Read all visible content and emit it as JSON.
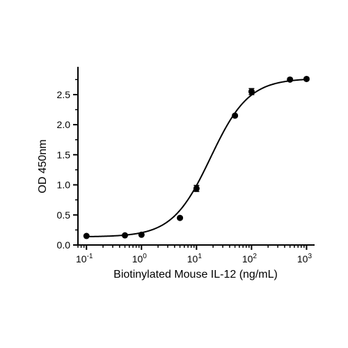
{
  "chart_data": {
    "type": "scatter",
    "xlabel": "Biotinylated Mouse IL-12 (ng/mL)",
    "ylabel": "OD 450nm",
    "x_scale": "log10",
    "xlim": [
      0.07,
      1400
    ],
    "ylim": [
      0,
      2.8
    ],
    "x_ticks": [
      {
        "base": "10",
        "exp": "-1",
        "value": 0.1
      },
      {
        "base": "10",
        "exp": "0",
        "value": 1
      },
      {
        "base": "10",
        "exp": "1",
        "value": 10
      },
      {
        "base": "10",
        "exp": "2",
        "value": 100
      },
      {
        "base": "10",
        "exp": "3",
        "value": 1000
      }
    ],
    "y_ticks": [
      {
        "label": "0.0",
        "value": 0
      },
      {
        "label": "0.5",
        "value": 0.5
      },
      {
        "label": "1.0",
        "value": 1.0
      },
      {
        "label": "1.5",
        "value": 1.5
      },
      {
        "label": "2.0",
        "value": 2.0
      },
      {
        "label": "2.5",
        "value": 2.5
      }
    ],
    "grid": false,
    "series": [
      {
        "x": [
          0.1,
          0.5,
          1,
          5,
          10,
          50,
          100,
          500,
          1000
        ],
        "y": [
          0.15,
          0.16,
          0.17,
          0.45,
          0.94,
          2.15,
          2.55,
          2.75,
          2.76
        ],
        "error": [
          0.01,
          0.01,
          0.01,
          0.02,
          0.05,
          0.02,
          0.05,
          0.02,
          0.02
        ]
      }
    ],
    "fit": {
      "model": "4PL",
      "bottom": 0.135,
      "top": 2.77,
      "ec50": 18,
      "hill": 1.25
    },
    "color": "#000000"
  }
}
